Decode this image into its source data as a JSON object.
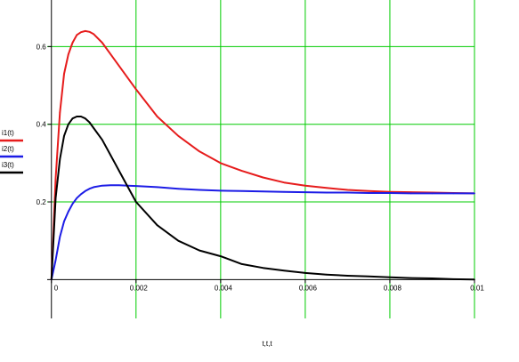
{
  "chart_data": {
    "type": "line",
    "title": "",
    "xlabel": "t,t,t",
    "ylabel": "",
    "xlim": [
      -0.0001,
      0.01
    ],
    "ylim": [
      -0.1,
      0.72
    ],
    "grid": true,
    "grid_color": "#00cc00",
    "legend_placement": "left",
    "x_ticks": [
      "0",
      "0.002",
      "0.004",
      "0.006",
      "0.008",
      "0.01"
    ],
    "x_tick_values": [
      0,
      0.002,
      0.004,
      0.006,
      0.008,
      0.01
    ],
    "y_ticks": [
      "0.2",
      "0.4",
      "0.6"
    ],
    "y_tick_values": [
      0.2,
      0.4,
      0.6
    ],
    "series": [
      {
        "name": "i1(t)",
        "color": "#e61c1c",
        "x": [
          0,
          0.0001,
          0.0002,
          0.0003,
          0.0004,
          0.0005,
          0.0006,
          0.0007,
          0.0008,
          0.0009,
          0.001,
          0.0012,
          0.0014,
          0.0016,
          0.0018,
          0.002,
          0.0025,
          0.003,
          0.0035,
          0.004,
          0.0045,
          0.005,
          0.0055,
          0.006,
          0.0065,
          0.007,
          0.0075,
          0.008,
          0.0085,
          0.009,
          0.0095,
          0.01
        ],
        "values": [
          0,
          0.26,
          0.43,
          0.53,
          0.58,
          0.61,
          0.63,
          0.637,
          0.64,
          0.638,
          0.632,
          0.61,
          0.58,
          0.55,
          0.52,
          0.49,
          0.42,
          0.37,
          0.33,
          0.3,
          0.28,
          0.263,
          0.25,
          0.242,
          0.236,
          0.231,
          0.228,
          0.226,
          0.225,
          0.224,
          0.223,
          0.222
        ]
      },
      {
        "name": "i2(t)",
        "color": "#1c1ce6",
        "x": [
          0,
          0.0001,
          0.0002,
          0.0003,
          0.0004,
          0.0005,
          0.0006,
          0.0007,
          0.0008,
          0.0009,
          0.001,
          0.0012,
          0.0014,
          0.0016,
          0.0018,
          0.002,
          0.0025,
          0.003,
          0.0035,
          0.004,
          0.0045,
          0.005,
          0.0055,
          0.006,
          0.0065,
          0.007,
          0.0075,
          0.008,
          0.0085,
          0.009,
          0.0095,
          0.01
        ],
        "values": [
          0,
          0.05,
          0.11,
          0.15,
          0.175,
          0.195,
          0.21,
          0.22,
          0.228,
          0.234,
          0.238,
          0.242,
          0.243,
          0.243,
          0.242,
          0.241,
          0.238,
          0.234,
          0.231,
          0.229,
          0.228,
          0.227,
          0.226,
          0.225,
          0.224,
          0.224,
          0.223,
          0.223,
          0.222,
          0.222,
          0.222,
          0.222
        ]
      },
      {
        "name": "i3(t)",
        "color": "#000000",
        "x": [
          0,
          0.0001,
          0.0002,
          0.0003,
          0.0004,
          0.0005,
          0.0006,
          0.0007,
          0.0008,
          0.0009,
          0.001,
          0.0012,
          0.0014,
          0.0016,
          0.0018,
          0.002,
          0.0025,
          0.003,
          0.0035,
          0.004,
          0.0045,
          0.005,
          0.0055,
          0.006,
          0.0065,
          0.007,
          0.0075,
          0.008,
          0.0085,
          0.009,
          0.0095,
          0.01
        ],
        "values": [
          0,
          0.21,
          0.31,
          0.37,
          0.4,
          0.415,
          0.42,
          0.42,
          0.415,
          0.405,
          0.39,
          0.36,
          0.32,
          0.28,
          0.24,
          0.2,
          0.14,
          0.1,
          0.075,
          0.06,
          0.04,
          0.03,
          0.023,
          0.017,
          0.013,
          0.01,
          0.008,
          0.006,
          0.004,
          0.003,
          0.001,
          0
        ]
      }
    ]
  }
}
